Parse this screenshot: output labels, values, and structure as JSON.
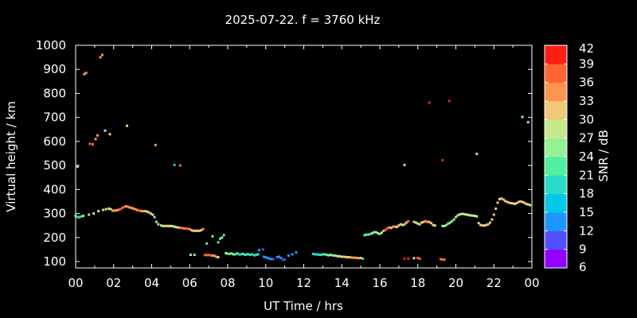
{
  "chart_data": {
    "type": "scatter",
    "title": "2025-07-22. f = 3760 kHz",
    "xlabel": "UT Time / hrs",
    "ylabel": "Virtual height / km",
    "xlim": [
      0,
      24
    ],
    "ylim": [
      80,
      1000
    ],
    "x_ticks": [
      "00",
      "02",
      "04",
      "06",
      "08",
      "10",
      "12",
      "14",
      "16",
      "18",
      "20",
      "22",
      "00"
    ],
    "y_ticks": [
      "1000",
      "900",
      "800",
      "700",
      "600",
      "500",
      "400",
      "300",
      "200",
      "100"
    ],
    "colorbar": {
      "label": "SNR / dB",
      "min": 6,
      "max": 42,
      "ticks": [
        "42",
        "39",
        "36",
        "33",
        "30",
        "27",
        "24",
        "21",
        "18",
        "15",
        "12",
        "9",
        "6"
      ],
      "colors": [
        "#9400ff",
        "#5050ff",
        "#1e96ff",
        "#00c8e6",
        "#28dcc8",
        "#50f0a0",
        "#96f096",
        "#c8e68c",
        "#f0c878",
        "#ff9650",
        "#ff6432",
        "#ff1e14"
      ]
    },
    "grid": false,
    "legend": "colorbar-right",
    "series": [
      {
        "x": [
          0.0,
          0.1,
          0.2,
          0.3,
          0.4
        ],
        "y": [
          290,
          285,
          285,
          288,
          290
        ],
        "snr": [
          24,
          19,
          19,
          19,
          24
        ]
      },
      {
        "x": [
          0.7,
          0.95,
          1.2,
          1.45,
          1.6,
          1.75,
          1.85
        ],
        "y": [
          295,
          300,
          310,
          315,
          318,
          320,
          318
        ],
        "snr": [
          27,
          28,
          28,
          29,
          28,
          28,
          30
        ]
      },
      {
        "x": [
          1.95,
          2.05,
          2.15,
          2.25,
          2.35,
          2.45,
          2.55,
          2.65,
          2.75,
          2.85,
          2.95,
          3.05,
          3.15,
          3.25,
          3.35,
          3.45,
          3.55,
          3.65,
          3.75,
          3.85,
          3.95,
          4.05,
          4.15
        ],
        "y": [
          312,
          312,
          313,
          315,
          318,
          323,
          327,
          330,
          328,
          325,
          323,
          320,
          318,
          314,
          312,
          310,
          310,
          310,
          308,
          305,
          300,
          295,
          285
        ],
        "snr": [
          34,
          34,
          35,
          35,
          36,
          36,
          37,
          35,
          34,
          34,
          34,
          33,
          33,
          33,
          36,
          35,
          34,
          32,
          31,
          31,
          30,
          29,
          26
        ]
      },
      {
        "x": [
          4.25,
          4.35,
          4.5,
          4.6,
          4.7,
          4.8,
          4.9,
          5.0,
          5.1,
          5.2,
          5.3,
          5.4,
          5.5,
          5.6,
          5.7,
          5.8,
          5.9,
          6.0,
          6.1,
          6.2,
          6.3,
          6.4,
          6.5,
          6.6,
          6.7
        ],
        "y": [
          265,
          255,
          250,
          248,
          248,
          248,
          248,
          248,
          247,
          245,
          243,
          242,
          240,
          240,
          238,
          238,
          236,
          235,
          230,
          228,
          228,
          228,
          228,
          230,
          235
        ],
        "snr": [
          25,
          24,
          26,
          28,
          30,
          30,
          29,
          28,
          27,
          26,
          27,
          32,
          35,
          38,
          34,
          36,
          37,
          35,
          31,
          31,
          31,
          31,
          31,
          30,
          34
        ]
      },
      {
        "x": [
          6.9,
          7.2,
          7.5,
          7.6,
          7.7,
          7.8
        ],
        "y": [
          175,
          205,
          180,
          195,
          200,
          210
        ],
        "snr": [
          23,
          24,
          23,
          23,
          24,
          23
        ]
      },
      {
        "x": [
          6.05,
          6.25
        ],
        "y": [
          128,
          128
        ],
        "snr": [
          24,
          24
        ]
      },
      {
        "x": [
          6.8,
          6.9,
          7.0,
          7.1,
          7.2,
          7.3,
          7.4,
          7.5
        ],
        "y": [
          127,
          127,
          127,
          126,
          125,
          124,
          120,
          118
        ],
        "snr": [
          37,
          37,
          37,
          37,
          35,
          34,
          33,
          28
        ]
      },
      {
        "x": [
          7.9,
          8.0,
          8.1,
          8.2,
          8.3,
          8.4,
          8.5,
          8.6,
          8.7,
          8.8,
          8.9,
          9.0,
          9.1,
          9.2,
          9.3,
          9.4,
          9.5,
          9.6
        ],
        "y": [
          135,
          133,
          132,
          134,
          130,
          130,
          134,
          130,
          130,
          132,
          128,
          130,
          130,
          128,
          130,
          126,
          128,
          130
        ],
        "snr": [
          25,
          24,
          23,
          22,
          24,
          22,
          21,
          20,
          20,
          21,
          20,
          21,
          21,
          18,
          18,
          19,
          18,
          19
        ]
      },
      {
        "x": [
          9.65,
          9.85
        ],
        "y": [
          148,
          150
        ],
        "snr": [
          12,
          10
        ]
      },
      {
        "x": [
          9.9,
          10.0,
          10.1,
          10.2,
          10.3,
          10.4,
          10.6,
          10.7,
          10.8,
          10.9,
          11.0,
          11.2,
          11.4,
          11.6
        ],
        "y": [
          120,
          118,
          115,
          112,
          110,
          110,
          118,
          120,
          115,
          108,
          108,
          125,
          130,
          138
        ],
        "snr": [
          13,
          14,
          13,
          12,
          12,
          11,
          13,
          13,
          14,
          10,
          11,
          12,
          14,
          13
        ]
      },
      {
        "x": [
          12.5,
          12.6,
          12.7,
          12.8,
          12.9,
          13.0,
          13.1,
          13.2,
          13.3,
          13.4,
          13.5,
          13.6,
          13.7,
          13.8,
          13.9,
          14.0,
          14.1,
          14.2,
          14.3,
          14.4,
          14.5,
          14.6,
          14.7,
          14.8,
          14.9,
          15.0,
          15.1
        ],
        "y": [
          132,
          130,
          130,
          128,
          128,
          130,
          130,
          128,
          126,
          128,
          126,
          125,
          124,
          122,
          122,
          120,
          120,
          119,
          118,
          118,
          117,
          116,
          116,
          115,
          114,
          115,
          112
        ],
        "snr": [
          18,
          19,
          20,
          19,
          18,
          22,
          23,
          23,
          24,
          24,
          25,
          26,
          26,
          28,
          28,
          29,
          30,
          31,
          32,
          32,
          33,
          34,
          35,
          34,
          33,
          31,
          18
        ]
      },
      {
        "x": [
          15.2,
          15.3,
          15.4,
          15.5,
          15.6,
          15.7,
          15.8,
          15.9,
          16.0,
          16.1,
          16.2,
          16.3,
          16.4,
          16.5,
          16.6,
          16.7,
          16.8,
          16.9,
          17.0,
          17.1,
          17.2,
          17.3,
          17.4,
          17.5
        ],
        "y": [
          210,
          212,
          212,
          215,
          218,
          222,
          222,
          218,
          215,
          220,
          228,
          232,
          238,
          242,
          240,
          245,
          245,
          244,
          250,
          255,
          252,
          255,
          262,
          268
        ],
        "snr": [
          21,
          22,
          23,
          22,
          24,
          24,
          26,
          24,
          26,
          28,
          32,
          36,
          37,
          34,
          32,
          33,
          35,
          32,
          31,
          30,
          29,
          30,
          31,
          37
        ]
      },
      {
        "x": [
          17.8,
          17.9,
          18.0,
          18.1,
          18.2,
          18.3,
          18.4,
          18.5,
          18.6,
          18.7,
          18.8,
          18.9
        ],
        "y": [
          265,
          262,
          258,
          255,
          262,
          265,
          268,
          265,
          265,
          260,
          252,
          250
        ],
        "snr": [
          30,
          29,
          28,
          30,
          31,
          32,
          33,
          33,
          32,
          31,
          30,
          29
        ]
      },
      {
        "x": [
          19.3,
          19.4,
          19.5,
          19.6,
          19.7,
          19.8,
          19.9,
          20.0,
          20.1,
          20.2,
          20.3,
          20.4,
          20.5,
          20.6,
          20.7,
          20.8,
          20.9,
          21.0,
          21.1
        ],
        "y": [
          248,
          248,
          252,
          258,
          262,
          268,
          275,
          285,
          292,
          296,
          298,
          298,
          296,
          295,
          293,
          292,
          291,
          290,
          288
        ],
        "snr": [
          26,
          25,
          25,
          25,
          25,
          25,
          25,
          26,
          28,
          28,
          28,
          29,
          28,
          29,
          29,
          28,
          28,
          28,
          27
        ]
      },
      {
        "x": [
          21.2,
          21.3,
          21.4,
          21.5,
          21.6,
          21.7,
          21.8,
          21.9,
          22.0,
          22.1,
          22.2,
          22.3,
          22.4,
          22.5,
          22.6,
          22.7,
          22.8,
          22.9,
          23.0,
          23.1,
          23.2,
          23.3,
          23.4,
          23.5,
          23.6,
          23.7,
          23.8,
          23.9
        ],
        "y": [
          260,
          252,
          250,
          250,
          252,
          255,
          262,
          275,
          295,
          320,
          345,
          360,
          362,
          358,
          352,
          348,
          345,
          343,
          342,
          340,
          343,
          348,
          350,
          348,
          345,
          340,
          338,
          335
        ],
        "snr": [
          30,
          30,
          30,
          29,
          30,
          31,
          31,
          31,
          30,
          30,
          31,
          31,
          30,
          30,
          31,
          31,
          31,
          30,
          30,
          30,
          31,
          32,
          32,
          31,
          31,
          29,
          29,
          28
        ]
      },
      {
        "x": [
          17.3,
          17.5,
          17.8,
          18.0,
          18.1
        ],
        "y": [
          112,
          112,
          114,
          115,
          112
        ],
        "snr": [
          40,
          41,
          27,
          37,
          37
        ]
      },
      {
        "x": [
          19.2,
          19.3,
          19.4
        ],
        "y": [
          110,
          108,
          108
        ],
        "snr": [
          36,
          36,
          36
        ]
      },
      {
        "x": [
          0.1,
          0.45,
          0.55,
          0.75,
          0.9,
          1.05,
          1.15,
          1.3,
          1.4,
          1.55,
          1.8,
          2.7,
          4.2,
          5.2,
          5.5
        ],
        "y": [
          495,
          880,
          885,
          590,
          588,
          610,
          625,
          950,
          960,
          645,
          630,
          665,
          585,
          502,
          500
        ],
        "snr": [
          25,
          33,
          33,
          36,
          36,
          33,
          33,
          33,
          33,
          25,
          30,
          30,
          33,
          15,
          38
        ]
      },
      {
        "x": [
          17.3,
          18.6,
          19.3,
          19.65,
          21.1,
          23.5,
          23.8
        ],
        "y": [
          502,
          762,
          522,
          768,
          548,
          702,
          680
        ],
        "snr": [
          31,
          40,
          41,
          40,
          31,
          25,
          25
        ]
      }
    ]
  }
}
